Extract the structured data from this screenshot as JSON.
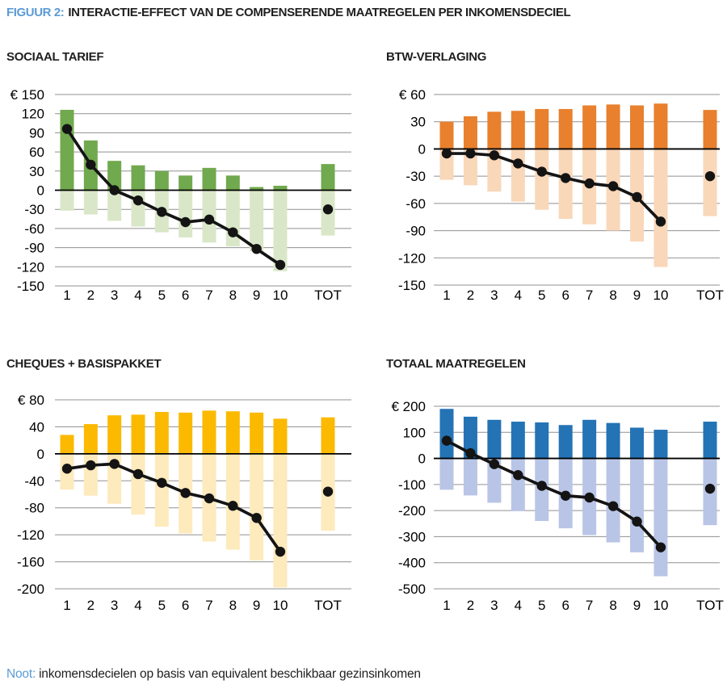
{
  "header": {
    "label": "FIGUUR 2:",
    "title": "INTERACTIE-EFFECT VAN DE COMPENSERENDE MAATREGELEN PER INKOMENSDECIEL",
    "accent_color": "#5b9bd5"
  },
  "note": {
    "label": "Noot:",
    "text": "inkomensdecielen op basis van equivalent beschikbaar gezinsinkomen"
  },
  "style_colors": {
    "gridline": "#919191",
    "zero_line": "#000000",
    "dot_line": "#141414",
    "tick_text": "#000000"
  },
  "chart_data": [
    {
      "type": "bar",
      "title": "SOCIAAL TARIEF",
      "categories": [
        "1",
        "2",
        "3",
        "4",
        "5",
        "6",
        "7",
        "8",
        "9",
        "10",
        "TOT"
      ],
      "y_prefix": "€",
      "ylim": [
        -150,
        150
      ],
      "ystep": 30,
      "grid": true,
      "legend_position": "none",
      "series": [
        {
          "name": "bars_positive",
          "type": "bar",
          "color": "#71a94e",
          "values": [
            126,
            78,
            46,
            39,
            30,
            23,
            35,
            23,
            5,
            7,
            41
          ]
        },
        {
          "name": "bars_negative",
          "type": "bar",
          "color": "#d9e7c8",
          "values": [
            -32,
            -38,
            -48,
            -57,
            -66,
            -74,
            -82,
            -88,
            -96,
            -127,
            -71
          ]
        },
        {
          "name": "line_dots",
          "type": "line",
          "color": "#141414",
          "values": [
            96,
            40,
            0,
            -16,
            -34,
            -50,
            -46,
            -66,
            -92,
            -117,
            -30
          ]
        }
      ]
    },
    {
      "type": "bar",
      "title": "BTW-VERLAGING",
      "categories": [
        "1",
        "2",
        "3",
        "4",
        "5",
        "6",
        "7",
        "8",
        "9",
        "10",
        "TOT"
      ],
      "y_prefix": "€",
      "ylim": [
        -150,
        60
      ],
      "ystep": 30,
      "grid": true,
      "legend_position": "none",
      "series": [
        {
          "name": "bars_positive",
          "type": "bar",
          "color": "#e8802d",
          "values": [
            30,
            36,
            41,
            42,
            44,
            44,
            48,
            49,
            48,
            50,
            43
          ]
        },
        {
          "name": "bars_negative",
          "type": "bar",
          "color": "#f9d7b9",
          "values": [
            -34,
            -40,
            -47,
            -58,
            -67,
            -77,
            -83,
            -90,
            -102,
            -130,
            -74
          ]
        },
        {
          "name": "line_dots",
          "type": "line",
          "color": "#141414",
          "values": [
            -5,
            -5,
            -7,
            -16,
            -25,
            -32,
            -38,
            -41,
            -53,
            -80,
            -30
          ]
        }
      ]
    },
    {
      "type": "bar",
      "title": "CHEQUES + BASISPAKKET",
      "categories": [
        "1",
        "2",
        "3",
        "4",
        "5",
        "6",
        "7",
        "8",
        "9",
        "10",
        "TOT"
      ],
      "y_prefix": "€",
      "ylim": [
        -200,
        80
      ],
      "ystep": 40,
      "grid": true,
      "legend_position": "none",
      "series": [
        {
          "name": "bars_positive",
          "type": "bar",
          "color": "#fbb900",
          "values": [
            28,
            44,
            57,
            58,
            62,
            61,
            64,
            63,
            61,
            52,
            54
          ]
        },
        {
          "name": "bars_negative",
          "type": "bar",
          "color": "#fdeabd",
          "values": [
            -53,
            -62,
            -74,
            -90,
            -108,
            -118,
            -130,
            -142,
            -158,
            -198,
            -114
          ]
        },
        {
          "name": "line_dots",
          "type": "line",
          "color": "#141414",
          "values": [
            -22,
            -17,
            -15,
            -30,
            -43,
            -58,
            -66,
            -77,
            -95,
            -145,
            -56
          ]
        }
      ]
    },
    {
      "type": "bar",
      "title": "TOTAAL MAATREGELEN",
      "categories": [
        "1",
        "2",
        "3",
        "4",
        "5",
        "6",
        "7",
        "8",
        "9",
        "10",
        "TOT"
      ],
      "y_prefix": "€",
      "ylim": [
        -500,
        200
      ],
      "ystep": 100,
      "grid": true,
      "legend_position": "none",
      "series": [
        {
          "name": "bars_positive",
          "type": "bar",
          "color": "#2473b5",
          "values": [
            190,
            160,
            148,
            141,
            138,
            128,
            148,
            136,
            118,
            110,
            141
          ]
        },
        {
          "name": "bars_negative",
          "type": "bar",
          "color": "#b9c5e6",
          "values": [
            -120,
            -142,
            -170,
            -202,
            -240,
            -268,
            -294,
            -322,
            -360,
            -452,
            -256
          ]
        },
        {
          "name": "line_dots",
          "type": "line",
          "color": "#141414",
          "values": [
            68,
            20,
            -22,
            -64,
            -105,
            -143,
            -150,
            -183,
            -242,
            -341,
            -116
          ]
        }
      ]
    }
  ]
}
